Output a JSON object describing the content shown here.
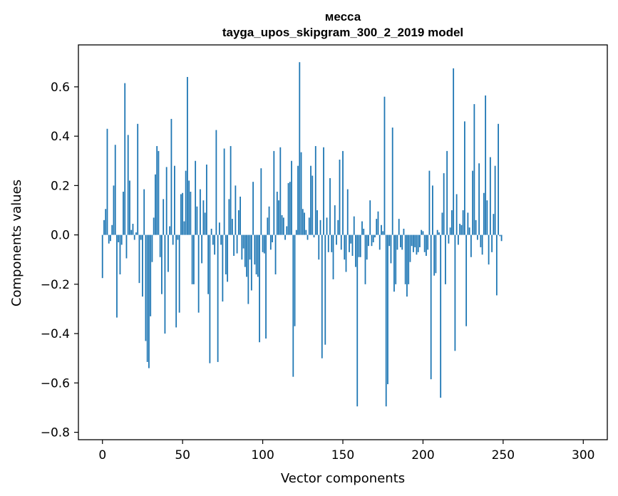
{
  "chart_data": {
    "type": "bar",
    "title_line1": "месса",
    "title_line2": "tayga_upos_skipgram_300_2_2019 model",
    "xlabel": "Vector components",
    "ylabel": "Components values",
    "xlim": [
      -15,
      315
    ],
    "ylim": [
      -0.83,
      0.77
    ],
    "xticks": [
      0,
      50,
      100,
      150,
      200,
      250,
      300
    ],
    "xtick_labels": [
      "0",
      "50",
      "100",
      "150",
      "200",
      "250",
      "300"
    ],
    "yticks": [
      -0.8,
      -0.6,
      -0.4,
      -0.2,
      0.0,
      0.2,
      0.4,
      0.6
    ],
    "ytick_labels": [
      "−0.8",
      "−0.6",
      "−0.4",
      "−0.2",
      "0.0",
      "0.2",
      "0.4",
      "0.6"
    ],
    "bar_color": "#1f77b4",
    "grid": false,
    "values": [
      -0.175,
      0.06,
      0.105,
      0.43,
      -0.035,
      -0.025,
      0.04,
      0.2,
      0.365,
      -0.335,
      -0.03,
      -0.16,
      -0.04,
      0.175,
      0.615,
      -0.095,
      0.405,
      0.22,
      0.02,
      0.045,
      -0.02,
      0.01,
      0.45,
      -0.195,
      -0.02,
      -0.25,
      0.185,
      -0.43,
      -0.515,
      -0.54,
      -0.33,
      -0.11,
      0.07,
      0.245,
      0.36,
      0.34,
      -0.09,
      -0.24,
      0.145,
      -0.4,
      0.275,
      -0.15,
      0.035,
      0.47,
      -0.04,
      0.28,
      -0.375,
      -0.02,
      -0.315,
      0.165,
      0.17,
      0.055,
      0.26,
      0.64,
      0.22,
      0.175,
      -0.2,
      -0.2,
      0.3,
      0.115,
      -0.315,
      0.185,
      -0.115,
      0.14,
      0.09,
      0.285,
      -0.24,
      -0.52,
      0.025,
      -0.04,
      -0.08,
      0.425,
      -0.515,
      0.05,
      -0.04,
      -0.27,
      0.35,
      -0.16,
      -0.19,
      0.145,
      0.36,
      0.065,
      -0.085,
      0.2,
      -0.075,
      0.1,
      0.155,
      -0.1,
      -0.055,
      -0.13,
      -0.17,
      -0.28,
      -0.1,
      -0.225,
      0.215,
      -0.12,
      -0.16,
      -0.17,
      -0.435,
      0.27,
      -0.07,
      -0.075,
      -0.42,
      0.07,
      0.115,
      -0.06,
      -0.03,
      0.34,
      -0.16,
      0.175,
      0.14,
      0.355,
      0.08,
      0.07,
      -0.02,
      0.035,
      0.21,
      0.215,
      0.3,
      -0.575,
      -0.37,
      0.02,
      0.28,
      0.7,
      0.335,
      0.105,
      0.09,
      0.02,
      -0.02,
      0.07,
      0.28,
      0.24,
      -0.01,
      0.36,
      0.1,
      -0.1,
      0.06,
      -0.5,
      0.355,
      -0.445,
      0.07,
      -0.07,
      0.23,
      -0.07,
      -0.18,
      0.12,
      -0.04,
      0.06,
      0.305,
      -0.06,
      0.34,
      -0.1,
      -0.15,
      0.185,
      -0.07,
      -0.035,
      -0.085,
      0.075,
      -0.13,
      -0.695,
      -0.09,
      -0.09,
      0.055,
      0.025,
      -0.2,
      -0.1,
      -0.045,
      0.14,
      -0.045,
      -0.03,
      -0.01,
      0.065,
      0.095,
      -0.06,
      0.04,
      0.015,
      0.56,
      -0.695,
      -0.605,
      -0.045,
      -0.115,
      0.435,
      -0.23,
      -0.2,
      -0.06,
      0.065,
      -0.05,
      -0.06,
      0.025,
      -0.2,
      -0.25,
      -0.2,
      -0.11,
      -0.045,
      -0.07,
      -0.05,
      -0.08,
      -0.07,
      -0.05,
      0.02,
      0.015,
      -0.07,
      -0.085,
      -0.06,
      0.26,
      -0.585,
      0.2,
      -0.165,
      -0.155,
      0.02,
      0.01,
      -0.66,
      0.09,
      0.25,
      -0.2,
      0.34,
      -0.035,
      0.03,
      0.1,
      0.675,
      -0.47,
      0.165,
      -0.04,
      0.045,
      0.04,
      0.1,
      0.46,
      -0.37,
      0.09,
      0.03,
      -0.09,
      0.26,
      0.53,
      0.06,
      -0.02,
      0.29,
      -0.05,
      -0.08,
      0.17,
      0.565,
      0.14,
      -0.12,
      0.315,
      -0.07,
      0.085,
      0.28,
      -0.245,
      0.45,
      -0.005,
      -0.025
    ]
  }
}
